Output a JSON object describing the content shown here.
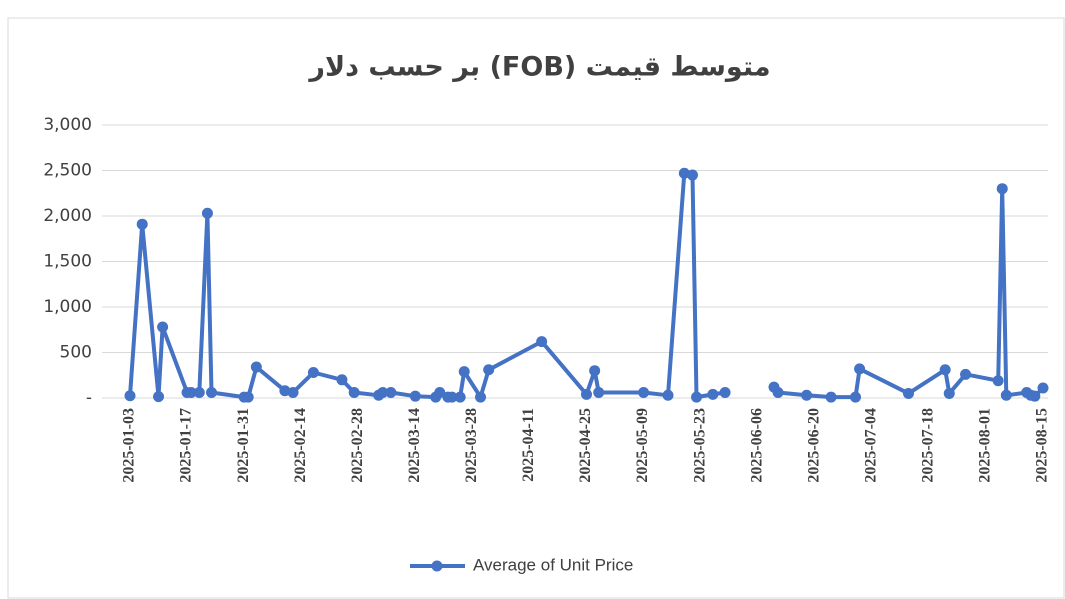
{
  "chart_data": {
    "type": "line",
    "title": "متوسط قیمت (FOB) بر حسب دلار",
    "x": [
      "2025-01-03",
      "2025-01-06",
      "2025-01-10",
      "2025-01-11",
      "2025-01-17",
      "2025-01-18",
      "2025-01-20",
      "2025-01-22",
      "2025-01-23",
      "2025-01-31",
      "2025-02-01",
      "2025-02-03",
      "2025-02-10",
      "2025-02-12",
      "2025-02-17",
      "2025-02-24",
      "2025-02-27",
      "2025-03-05",
      "2025-03-06",
      "2025-03-08",
      "2025-03-14",
      "2025-03-19",
      "2025-03-20",
      "2025-03-22",
      "2025-03-23",
      "2025-03-25",
      "2025-03-26",
      "2025-03-30",
      "2025-04-01",
      "2025-04-14",
      "2025-04-25",
      "2025-04-27",
      "2025-04-28",
      "2025-05-09",
      "2025-05-15",
      "2025-05-19",
      "2025-05-21",
      "2025-05-22",
      "2025-05-26",
      "2025-05-29",
      "2025-06-05",
      "2025-06-10",
      "2025-06-11",
      "2025-06-18",
      "2025-06-24",
      "2025-06-30",
      "2025-07-01",
      "2025-07-13",
      "2025-07-22",
      "2025-07-23",
      "2025-07-27",
      "2025-08-04",
      "2025-08-05",
      "2025-08-06",
      "2025-08-11",
      "2025-08-12",
      "2025-08-13",
      "2025-08-15"
    ],
    "series": [
      {
        "name": "Average of Unit Price",
        "color": "#4472c4",
        "values": [
          25,
          1910,
          15,
          780,
          60,
          60,
          60,
          2030,
          60,
          10,
          10,
          340,
          80,
          60,
          280,
          200,
          60,
          30,
          60,
          60,
          20,
          10,
          60,
          10,
          10,
          10,
          290,
          10,
          310,
          620,
          40,
          300,
          60,
          60,
          30,
          2470,
          2450,
          10,
          40,
          60,
          null,
          120,
          60,
          30,
          10,
          10,
          320,
          50,
          310,
          50,
          260,
          190,
          2300,
          30,
          60,
          30,
          20,
          110
        ]
      }
    ],
    "xlim": [
      "2025-01-03",
      "2025-08-15"
    ],
    "xticks": [
      "2025-01-03",
      "2025-01-17",
      "2025-01-31",
      "2025-02-14",
      "2025-02-28",
      "2025-03-14",
      "2025-03-28",
      "2025-04-11",
      "2025-04-25",
      "2025-05-09",
      "2025-05-23",
      "2025-06-06",
      "2025-06-20",
      "2025-07-04",
      "2025-07-18",
      "2025-08-01",
      "2025-08-15"
    ],
    "ylim": [
      0,
      3000
    ],
    "yticks": [
      {
        "value": 0,
        "label": "-"
      },
      500,
      {
        "value": 1000,
        "label": "1,000"
      },
      {
        "value": 1500,
        "label": "1,500"
      },
      {
        "value": 2000,
        "label": "2,000"
      },
      {
        "value": 2500,
        "label": "2,500"
      },
      {
        "value": 3000,
        "label": "3,000"
      }
    ],
    "grid": true,
    "legend": "bottom"
  }
}
